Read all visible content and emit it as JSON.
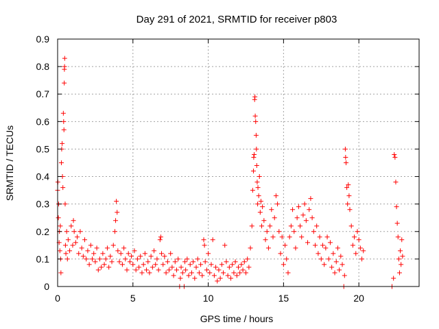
{
  "chart_data": {
    "type": "scatter",
    "title": "Day 291 of 2021, SRMTID for receiver p803",
    "xlabel": "GPS time / hours",
    "ylabel": "SRMTID / TECUs",
    "xlim": [
      0,
      24
    ],
    "ylim": [
      0,
      0.9
    ],
    "x_ticks": [
      0,
      5,
      10,
      15,
      20
    ],
    "x_tick_labels": [
      "0",
      "5",
      "10",
      "15",
      "20"
    ],
    "y_ticks": [
      0,
      0.1,
      0.2,
      0.3,
      0.4,
      0.5,
      0.6,
      0.7,
      0.8,
      0.9
    ],
    "y_tick_labels": [
      "0",
      "0.1",
      "0.2",
      "0.3",
      "0.4",
      "0.5",
      "0.6",
      "0.7",
      "0.8",
      "0.9"
    ],
    "grid": true,
    "marker": "+",
    "color": "#ff0000",
    "series": [
      {
        "name": "SRMTID",
        "points": [
          [
            0.0,
            0.35
          ],
          [
            0.02,
            0.38
          ],
          [
            0.05,
            0.25
          ],
          [
            0.07,
            0.3
          ],
          [
            0.1,
            0.16
          ],
          [
            0.12,
            0.2
          ],
          [
            0.15,
            0.13
          ],
          [
            0.18,
            0.22
          ],
          [
            0.2,
            0.1
          ],
          [
            0.22,
            0.05
          ],
          [
            0.25,
            0.45
          ],
          [
            0.27,
            0.5
          ],
          [
            0.3,
            0.52
          ],
          [
            0.32,
            0.4
          ],
          [
            0.35,
            0.36
          ],
          [
            0.38,
            0.63
          ],
          [
            0.4,
            0.6
          ],
          [
            0.42,
            0.57
          ],
          [
            0.44,
            0.74
          ],
          [
            0.45,
            0.79
          ],
          [
            0.46,
            0.8
          ],
          [
            0.47,
            0.83
          ],
          [
            0.5,
            0.3
          ],
          [
            0.52,
            0.15
          ],
          [
            0.55,
            0.12
          ],
          [
            0.6,
            0.2
          ],
          [
            0.65,
            0.1
          ],
          [
            0.7,
            0.17
          ],
          [
            0.8,
            0.13
          ],
          [
            0.9,
            0.22
          ],
          [
            1.0,
            0.15
          ],
          [
            1.05,
            0.24
          ],
          [
            1.1,
            0.2
          ],
          [
            1.2,
            0.16
          ],
          [
            1.3,
            0.18
          ],
          [
            1.4,
            0.12
          ],
          [
            1.5,
            0.2
          ],
          [
            1.6,
            0.14
          ],
          [
            1.7,
            0.11
          ],
          [
            1.8,
            0.17
          ],
          [
            1.9,
            0.1
          ],
          [
            2.0,
            0.13
          ],
          [
            2.1,
            0.08
          ],
          [
            2.2,
            0.15
          ],
          [
            2.3,
            0.1
          ],
          [
            2.4,
            0.12
          ],
          [
            2.5,
            0.09
          ],
          [
            2.6,
            0.14
          ],
          [
            2.7,
            0.06
          ],
          [
            2.8,
            0.1
          ],
          [
            2.9,
            0.07
          ],
          [
            3.0,
            0.12
          ],
          [
            3.1,
            0.08
          ],
          [
            3.2,
            0.1
          ],
          [
            3.3,
            0.14
          ],
          [
            3.4,
            0.07
          ],
          [
            3.5,
            0.11
          ],
          [
            3.6,
            0.09
          ],
          [
            3.7,
            0.15
          ],
          [
            3.8,
            0.2
          ],
          [
            3.85,
            0.24
          ],
          [
            3.9,
            0.31
          ],
          [
            3.95,
            0.27
          ],
          [
            4.0,
            0.13
          ],
          [
            4.1,
            0.09
          ],
          [
            4.2,
            0.12
          ],
          [
            4.3,
            0.08
          ],
          [
            4.4,
            0.14
          ],
          [
            4.5,
            0.1
          ],
          [
            4.6,
            0.06
          ],
          [
            4.7,
            0.12
          ],
          [
            4.8,
            0.09
          ],
          [
            4.9,
            0.11
          ],
          [
            5.0,
            0.08
          ],
          [
            5.1,
            0.13
          ],
          [
            5.2,
            0.06
          ],
          [
            5.3,
            0.1
          ],
          [
            5.4,
            0.07
          ],
          [
            5.5,
            0.11
          ],
          [
            5.6,
            0.05
          ],
          [
            5.7,
            0.08
          ],
          [
            5.8,
            0.12
          ],
          [
            5.9,
            0.06
          ],
          [
            6.0,
            0.09
          ],
          [
            6.1,
            0.05
          ],
          [
            6.2,
            0.11
          ],
          [
            6.3,
            0.07
          ],
          [
            6.4,
            0.13
          ],
          [
            6.5,
            0.08
          ],
          [
            6.6,
            0.1
          ],
          [
            6.7,
            0.06
          ],
          [
            6.8,
            0.17
          ],
          [
            6.85,
            0.18
          ],
          [
            6.9,
            0.12
          ],
          [
            7.0,
            0.08
          ],
          [
            7.1,
            0.11
          ],
          [
            7.2,
            0.05
          ],
          [
            7.3,
            0.09
          ],
          [
            7.4,
            0.06
          ],
          [
            7.5,
            0.12
          ],
          [
            7.6,
            0.07
          ],
          [
            7.7,
            0.04
          ],
          [
            7.8,
            0.09
          ],
          [
            7.9,
            0.06
          ],
          [
            8.0,
            0.1
          ],
          [
            8.1,
            0.0
          ],
          [
            8.15,
            0.03
          ],
          [
            8.2,
            0.07
          ],
          [
            8.3,
            0.05
          ],
          [
            8.4,
            0.0
          ],
          [
            8.45,
            0.09
          ],
          [
            8.5,
            0.06
          ],
          [
            8.6,
            0.1
          ],
          [
            8.7,
            0.04
          ],
          [
            8.8,
            0.08
          ],
          [
            8.9,
            0.05
          ],
          [
            9.0,
            0.09
          ],
          [
            9.1,
            0.03
          ],
          [
            9.2,
            0.07
          ],
          [
            9.3,
            0.1
          ],
          [
            9.4,
            0.05
          ],
          [
            9.5,
            0.08
          ],
          [
            9.6,
            0.04
          ],
          [
            9.7,
            0.17
          ],
          [
            9.75,
            0.15
          ],
          [
            9.8,
            0.09
          ],
          [
            9.9,
            0.06
          ],
          [
            10.0,
            0.12
          ],
          [
            10.1,
            0.05
          ],
          [
            10.2,
            0.08
          ],
          [
            10.3,
            0.17
          ],
          [
            10.4,
            0.04
          ],
          [
            10.5,
            0.07
          ],
          [
            10.6,
            0.02
          ],
          [
            10.7,
            0.06
          ],
          [
            10.8,
            0.03
          ],
          [
            10.9,
            0.08
          ],
          [
            11.0,
            0.05
          ],
          [
            11.1,
            0.15
          ],
          [
            11.2,
            0.09
          ],
          [
            11.3,
            0.04
          ],
          [
            11.4,
            0.07
          ],
          [
            11.5,
            0.03
          ],
          [
            11.6,
            0.08
          ],
          [
            11.7,
            0.05
          ],
          [
            11.8,
            0.09
          ],
          [
            11.9,
            0.04
          ],
          [
            12.0,
            0.07
          ],
          [
            12.1,
            0.05
          ],
          [
            12.2,
            0.08
          ],
          [
            12.3,
            0.06
          ],
          [
            12.4,
            0.09
          ],
          [
            12.5,
            0.05
          ],
          [
            12.6,
            0.1
          ],
          [
            12.7,
            0.07
          ],
          [
            12.8,
            0.14
          ],
          [
            12.9,
            0.22
          ],
          [
            12.95,
            0.35
          ],
          [
            13.0,
            0.42
          ],
          [
            13.02,
            0.47
          ],
          [
            13.05,
            0.48
          ],
          [
            13.08,
            0.68
          ],
          [
            13.1,
            0.69
          ],
          [
            13.12,
            0.62
          ],
          [
            13.15,
            0.6
          ],
          [
            13.18,
            0.55
          ],
          [
            13.2,
            0.5
          ],
          [
            13.22,
            0.44
          ],
          [
            13.25,
            0.38
          ],
          [
            13.28,
            0.3
          ],
          [
            13.3,
            0.36
          ],
          [
            13.35,
            0.33
          ],
          [
            13.4,
            0.4
          ],
          [
            13.45,
            0.27
          ],
          [
            13.5,
            0.31
          ],
          [
            13.55,
            0.22
          ],
          [
            13.6,
            0.29
          ],
          [
            13.7,
            0.24
          ],
          [
            13.8,
            0.17
          ],
          [
            13.9,
            0.2
          ],
          [
            14.0,
            0.14
          ],
          [
            14.1,
            0.22
          ],
          [
            14.2,
            0.28
          ],
          [
            14.3,
            0.18
          ],
          [
            14.4,
            0.25
          ],
          [
            14.5,
            0.33
          ],
          [
            14.6,
            0.3
          ],
          [
            14.7,
            0.2
          ],
          [
            14.8,
            0.12
          ],
          [
            14.9,
            0.18
          ],
          [
            15.0,
            0.08
          ],
          [
            15.1,
            0.15
          ],
          [
            15.2,
            0.1
          ],
          [
            15.3,
            0.05
          ],
          [
            15.4,
            0.18
          ],
          [
            15.5,
            0.22
          ],
          [
            15.6,
            0.28
          ],
          [
            15.7,
            0.2
          ],
          [
            15.8,
            0.14
          ],
          [
            15.9,
            0.25
          ],
          [
            16.0,
            0.29
          ],
          [
            16.1,
            0.22
          ],
          [
            16.2,
            0.18
          ],
          [
            16.3,
            0.26
          ],
          [
            16.4,
            0.3
          ],
          [
            16.5,
            0.24
          ],
          [
            16.6,
            0.16
          ],
          [
            16.7,
            0.28
          ],
          [
            16.8,
            0.32
          ],
          [
            16.9,
            0.25
          ],
          [
            17.0,
            0.2
          ],
          [
            17.1,
            0.15
          ],
          [
            17.2,
            0.22
          ],
          [
            17.3,
            0.12
          ],
          [
            17.4,
            0.18
          ],
          [
            17.5,
            0.1
          ],
          [
            17.6,
            0.15
          ],
          [
            17.7,
            0.08
          ],
          [
            17.8,
            0.14
          ],
          [
            17.9,
            0.18
          ],
          [
            18.0,
            0.1
          ],
          [
            18.1,
            0.16
          ],
          [
            18.2,
            0.07
          ],
          [
            18.3,
            0.12
          ],
          [
            18.4,
            0.05
          ],
          [
            18.5,
            0.09
          ],
          [
            18.6,
            0.14
          ],
          [
            18.7,
            0.06
          ],
          [
            18.8,
            0.11
          ],
          [
            18.9,
            0.08
          ],
          [
            19.0,
            0.0
          ],
          [
            19.05,
            0.04
          ],
          [
            19.1,
            0.5
          ],
          [
            19.12,
            0.47
          ],
          [
            19.15,
            0.45
          ],
          [
            19.2,
            0.36
          ],
          [
            19.25,
            0.3
          ],
          [
            19.3,
            0.37
          ],
          [
            19.35,
            0.33
          ],
          [
            19.4,
            0.28
          ],
          [
            19.5,
            0.22
          ],
          [
            19.6,
            0.15
          ],
          [
            19.7,
            0.18
          ],
          [
            19.8,
            0.12
          ],
          [
            19.9,
            0.2
          ],
          [
            20.0,
            0.17
          ],
          [
            20.1,
            0.14
          ],
          [
            20.2,
            0.1
          ],
          [
            20.3,
            0.13
          ],
          [
            22.2,
            0.0
          ],
          [
            22.3,
            0.03
          ],
          [
            22.35,
            0.48
          ],
          [
            22.4,
            0.47
          ],
          [
            22.45,
            0.38
          ],
          [
            22.5,
            0.29
          ],
          [
            22.55,
            0.23
          ],
          [
            22.6,
            0.18
          ],
          [
            22.65,
            0.1
          ],
          [
            22.7,
            0.05
          ],
          [
            22.75,
            0.13
          ],
          [
            22.8,
            0.08
          ],
          [
            22.85,
            0.17
          ],
          [
            22.9,
            0.11
          ]
        ]
      }
    ]
  }
}
